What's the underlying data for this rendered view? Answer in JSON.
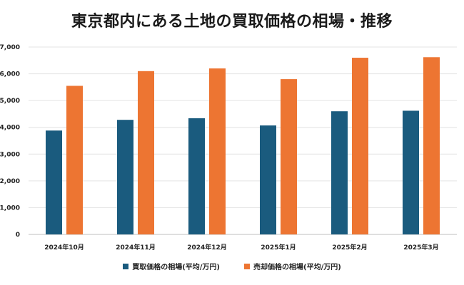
{
  "chart_data": {
    "type": "bar",
    "title": "東京都内にある土地の買取価格の相場・推移",
    "categories": [
      "2024年10月",
      "2024年11月",
      "2024年12月",
      "2025年1月",
      "2025年2月",
      "2025年3月"
    ],
    "series": [
      {
        "name": "買取価格の相場(平均/万円)",
        "color": "#1a5b7e",
        "values": [
          3880,
          4280,
          4340,
          4070,
          4600,
          4620
        ]
      },
      {
        "name": "売却価格の相場(平均/万円)",
        "color": "#ed7532",
        "values": [
          5550,
          6100,
          6200,
          5800,
          6600,
          6620
        ]
      }
    ],
    "yticks": [
      "0",
      "1,000",
      "2,000",
      "3,000",
      "4,000",
      "5,000",
      "6,000",
      "7,000"
    ],
    "ylim": [
      0,
      7000
    ],
    "grid": true,
    "legend_position": "bottom"
  }
}
